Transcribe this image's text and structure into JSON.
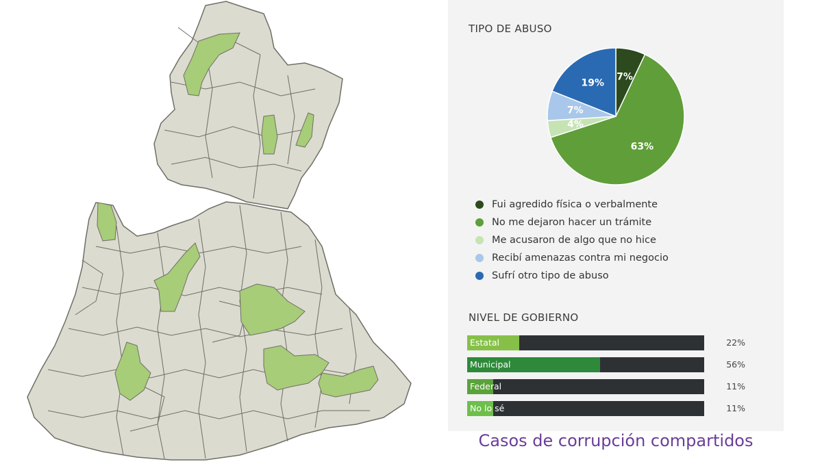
{
  "colors": {
    "map_base": "#dcdbd0",
    "map_border": "#6e6e66",
    "map_highlight": "#a7cd78",
    "panel_bg": "#f3f3f3",
    "bar_track": "#2e3134",
    "title_purple": "#6a3d98"
  },
  "pie_section": {
    "title": "TIPO DE ABUSO"
  },
  "bars_section": {
    "title": "NIVEL DE GOBIERNO"
  },
  "footer": {
    "title": "Casos de corrupción compartidos"
  },
  "chart_data": [
    {
      "type": "pie",
      "title": "TIPO DE ABUSO",
      "slices": [
        {
          "label": "Fui agredido física o verbalmente",
          "value": 7,
          "display": "7%",
          "color": "#2c4a1e"
        },
        {
          "label": "No me dejaron hacer un trámite",
          "value": 63,
          "display": "63%",
          "color": "#5f9e39"
        },
        {
          "label": "Me acusaron de algo que no hice",
          "value": 4,
          "display": "4%",
          "color": "#c6e3b4"
        },
        {
          "label": "Recibí amenazas contra mi negocio",
          "value": 7,
          "display": "7%",
          "color": "#a8c7ea"
        },
        {
          "label": "Sufrí otro tipo de abuso",
          "value": 19,
          "display": "19%",
          "color": "#2a6ab3"
        }
      ],
      "legend_placement": "bottom"
    },
    {
      "type": "bar",
      "orientation": "horizontal",
      "title": "NIVEL DE GOBIERNO",
      "categories": [
        "Estatal",
        "Municipal",
        "Federal",
        "No lo sé"
      ],
      "values": [
        22,
        56,
        11,
        11
      ],
      "value_labels": [
        "22%",
        "56%",
        "11%",
        "11%"
      ],
      "colors": [
        "#86c049",
        "#2e8a3a",
        "#5aa23a",
        "#6cc04a"
      ],
      "xlim": [
        0,
        100
      ]
    }
  ]
}
